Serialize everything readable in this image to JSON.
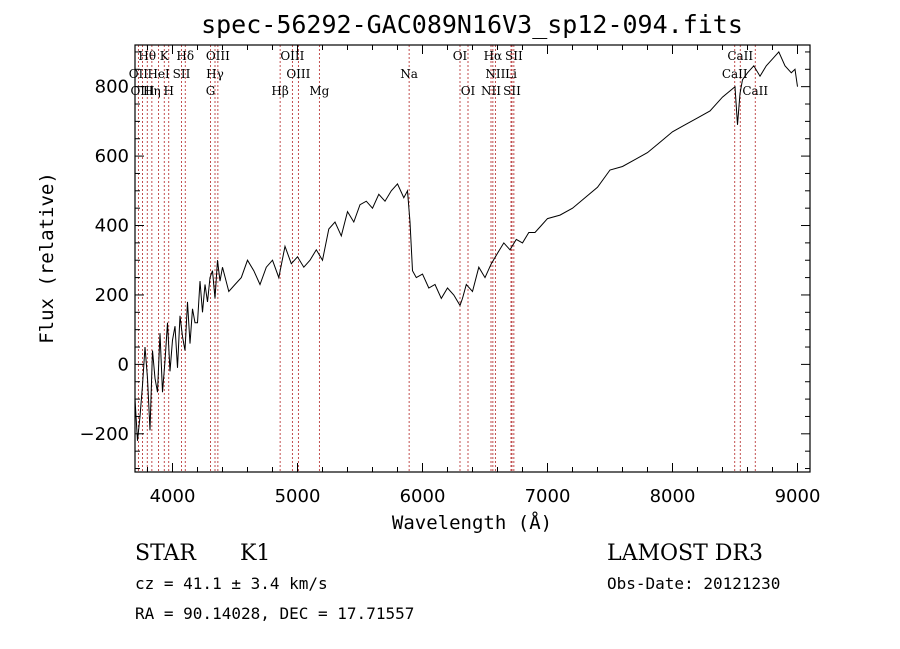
{
  "chart_data": {
    "type": "line",
    "title": "spec-56292-GAC089N16V3_sp12-094.fits",
    "xlabel": "Wavelength (Å)",
    "ylabel": "Flux (relative)",
    "xlim": [
      3700,
      9100
    ],
    "ylim": [
      -310,
      920
    ],
    "x_ticks": [
      4000,
      5000,
      6000,
      7000,
      8000,
      9000
    ],
    "x_tick_labels": [
      "4000",
      "5000",
      "6000",
      "7000",
      "8000",
      "9000"
    ],
    "y_ticks": [
      -200,
      0,
      200,
      400,
      600,
      800
    ],
    "y_tick_labels": [
      "−200",
      "0",
      "200",
      "400",
      "600",
      "800"
    ],
    "series": [
      {
        "name": "flux",
        "x": [
          3700,
          3720,
          3740,
          3760,
          3780,
          3800,
          3820,
          3840,
          3860,
          3880,
          3900,
          3920,
          3940,
          3960,
          3980,
          4000,
          4020,
          4040,
          4060,
          4080,
          4100,
          4120,
          4140,
          4160,
          4180,
          4200,
          4220,
          4240,
          4260,
          4280,
          4300,
          4320,
          4340,
          4360,
          4380,
          4400,
          4450,
          4500,
          4550,
          4600,
          4650,
          4700,
          4750,
          4800,
          4850,
          4900,
          4950,
          5000,
          5050,
          5100,
          5150,
          5200,
          5250,
          5300,
          5350,
          5400,
          5450,
          5500,
          5550,
          5600,
          5650,
          5700,
          5750,
          5800,
          5850,
          5880,
          5900,
          5920,
          5950,
          6000,
          6050,
          6100,
          6150,
          6200,
          6250,
          6300,
          6320,
          6350,
          6400,
          6450,
          6500,
          6550,
          6600,
          6650,
          6700,
          6750,
          6800,
          6850,
          6900,
          6950,
          7000,
          7100,
          7200,
          7300,
          7400,
          7500,
          7600,
          7700,
          7800,
          7900,
          8000,
          8100,
          8200,
          8300,
          8400,
          8500,
          8520,
          8540,
          8560,
          8600,
          8650,
          8700,
          8750,
          8800,
          8850,
          8900,
          8950,
          8980,
          9000
        ],
        "y": [
          -100,
          -220,
          -150,
          -60,
          50,
          -40,
          -190,
          40,
          -40,
          -80,
          90,
          -80,
          10,
          120,
          -20,
          70,
          110,
          -10,
          140,
          80,
          40,
          180,
          60,
          160,
          120,
          120,
          240,
          150,
          230,
          180,
          250,
          270,
          190,
          300,
          240,
          280,
          210,
          230,
          250,
          300,
          270,
          230,
          280,
          300,
          250,
          340,
          290,
          310,
          280,
          300,
          330,
          300,
          390,
          410,
          370,
          440,
          410,
          460,
          470,
          450,
          490,
          470,
          500,
          520,
          480,
          500,
          410,
          270,
          250,
          260,
          220,
          230,
          190,
          220,
          200,
          170,
          190,
          230,
          210,
          280,
          250,
          290,
          320,
          350,
          330,
          360,
          350,
          380,
          380,
          400,
          420,
          430,
          450,
          480,
          510,
          560,
          570,
          590,
          610,
          640,
          670,
          690,
          710,
          730,
          770,
          800,
          690,
          780,
          820,
          840,
          860,
          830,
          860,
          880,
          900,
          860,
          840,
          850,
          800
        ]
      }
    ],
    "emission_lines": [
      {
        "name": "Hθ",
        "wl": 3798,
        "row": 1
      },
      {
        "name": "K",
        "wl": 3934,
        "row": 1
      },
      {
        "name": "Hδ",
        "wl": 4102,
        "row": 1
      },
      {
        "name": "OIII",
        "wl": 4363,
        "row": 1
      },
      {
        "name": "OIII",
        "wl": 4959,
        "row": 1
      },
      {
        "name": "OI",
        "wl": 6300,
        "row": 1
      },
      {
        "name": "Hα",
        "wl": 6563,
        "row": 1
      },
      {
        "name": "SII",
        "wl": 6731,
        "row": 1
      },
      {
        "name": "CaII",
        "wl": 8542,
        "row": 1
      },
      {
        "name": "OII",
        "wl": 3727,
        "row": 2
      },
      {
        "name": "HeI",
        "wl": 3889,
        "row": 2
      },
      {
        "name": "SII",
        "wl": 4072,
        "row": 2
      },
      {
        "name": "Hγ",
        "wl": 4340,
        "row": 2
      },
      {
        "name": "OIII",
        "wl": 5007,
        "row": 2
      },
      {
        "name": "Na",
        "wl": 5893,
        "row": 2
      },
      {
        "name": "NII",
        "wl": 6583,
        "row": 2
      },
      {
        "name": "Li",
        "wl": 6708,
        "row": 2
      },
      {
        "name": "CaII",
        "wl": 8498,
        "row": 2
      },
      {
        "name": "OIII",
        "wl": 3760,
        "row": 3
      },
      {
        "name": "Hη",
        "wl": 3835,
        "row": 3
      },
      {
        "name": "H",
        "wl": 3970,
        "row": 3
      },
      {
        "name": "G",
        "wl": 4304,
        "row": 3
      },
      {
        "name": "Hβ",
        "wl": 4861,
        "row": 3
      },
      {
        "name": "Mg",
        "wl": 5175,
        "row": 3
      },
      {
        "name": "OI",
        "wl": 6364,
        "row": 3
      },
      {
        "name": "NII",
        "wl": 6548,
        "row": 3
      },
      {
        "name": "SII",
        "wl": 6716,
        "row": 3
      },
      {
        "name": "CaII",
        "wl": 8662,
        "row": 3
      }
    ]
  },
  "info": {
    "object_class": "STAR",
    "subclass": "K1",
    "redshift": "cz = 41.1 ± 3.4 km/s",
    "coordinates": "RA =  90.14028, DEC =  17.71557",
    "survey": "LAMOST DR3",
    "obs_date": "Obs-Date: 20121230"
  },
  "colors": {
    "spectrum": "#000000",
    "line_marker": "#b22222",
    "axes": "#000000"
  }
}
